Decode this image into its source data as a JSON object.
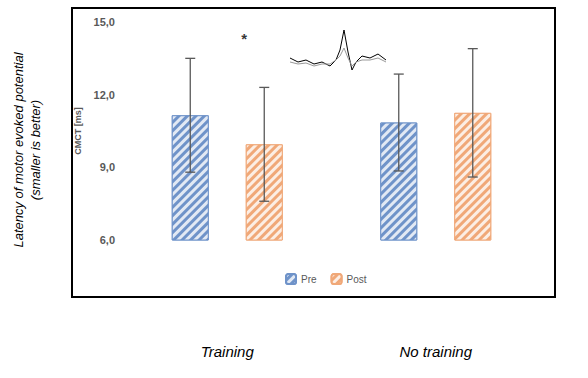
{
  "chart_data": {
    "type": "bar",
    "categories": [
      "Training",
      "No training"
    ],
    "series": [
      {
        "name": "Pre",
        "color": "#6f93c9",
        "values": [
          11.15,
          10.85
        ],
        "errors": [
          2.35,
          2.0
        ]
      },
      {
        "name": "Post",
        "color": "#f0a878",
        "values": [
          9.95,
          11.25
        ],
        "errors": [
          2.35,
          2.65
        ]
      }
    ],
    "ylabel": "CMCT [ms]",
    "outer_ylabel": [
      "Latency of motor evoked potential",
      "(smaller is better)"
    ],
    "annotations": [
      {
        "text": "*",
        "category": "Training",
        "y": 14.3
      }
    ],
    "ylim": [
      6,
      15
    ],
    "yticks": [
      {
        "value": 6,
        "label": "6,0"
      },
      {
        "value": 9,
        "label": "9,0"
      },
      {
        "value": 12,
        "label": "12,0"
      },
      {
        "value": 15,
        "label": "15,0"
      }
    ],
    "grid": false,
    "legend": "bottom"
  }
}
